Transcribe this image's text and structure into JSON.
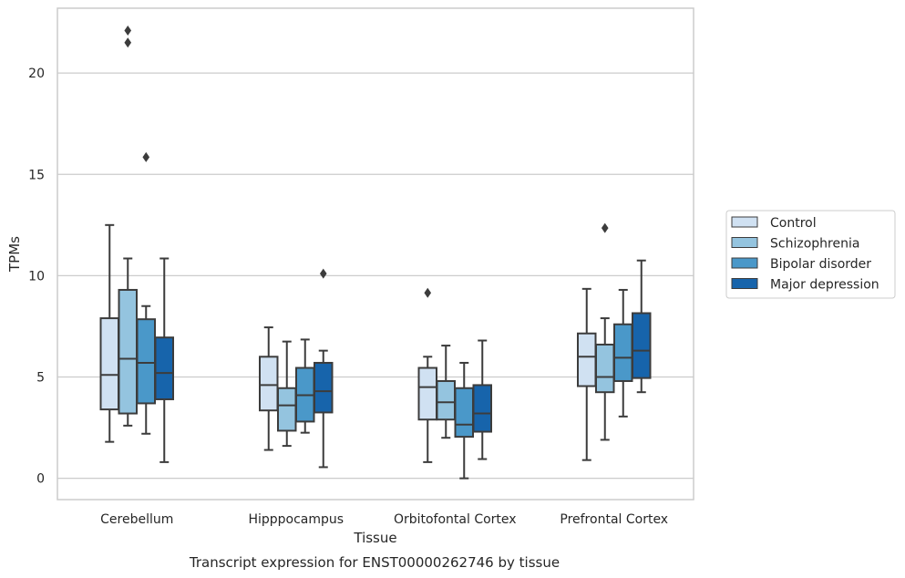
{
  "chart_data": {
    "type": "box",
    "title": "Transcript expression for ENST00000262746 by tissue",
    "xlabel": "Tissue",
    "ylabel": "TPMs",
    "ylim": [
      -1.05,
      23.2
    ],
    "yticks": [
      0,
      5,
      10,
      15,
      20
    ],
    "grid": "horizontal",
    "legend_position": "right",
    "categories": [
      "Cerebellum",
      "Hipppocampus",
      "Orbitofontal Cortex",
      "Prefrontal Cortex"
    ],
    "series": [
      {
        "name": "Control",
        "color": "#d0e1f2",
        "boxes": [
          {
            "whislo": 1.8,
            "q1": 3.4,
            "med": 5.1,
            "q3": 7.9,
            "whishi": 12.5,
            "fliers": []
          },
          {
            "whislo": 1.4,
            "q1": 3.35,
            "med": 4.6,
            "q3": 6.0,
            "whishi": 7.45,
            "fliers": []
          },
          {
            "whislo": 0.8,
            "q1": 2.9,
            "med": 4.5,
            "q3": 5.45,
            "whishi": 6.0,
            "fliers": [
              9.15
            ]
          },
          {
            "whislo": 0.9,
            "q1": 4.55,
            "med": 6.0,
            "q3": 7.15,
            "whishi": 9.35,
            "fliers": []
          }
        ]
      },
      {
        "name": "Schizophrenia",
        "color": "#94c4df",
        "boxes": [
          {
            "whislo": 2.6,
            "q1": 3.2,
            "med": 5.9,
            "q3": 9.3,
            "whishi": 10.85,
            "fliers": [
              21.5,
              22.1
            ]
          },
          {
            "whislo": 1.6,
            "q1": 2.35,
            "med": 3.6,
            "q3": 4.45,
            "whishi": 6.75,
            "fliers": []
          },
          {
            "whislo": 2.0,
            "q1": 2.9,
            "med": 3.75,
            "q3": 4.8,
            "whishi": 6.55,
            "fliers": []
          },
          {
            "whislo": 1.9,
            "q1": 4.25,
            "med": 5.0,
            "q3": 6.6,
            "whishi": 7.9,
            "fliers": [
              12.35
            ]
          }
        ]
      },
      {
        "name": "Bipolar disorder",
        "color": "#4a98c9",
        "boxes": [
          {
            "whislo": 2.2,
            "q1": 3.7,
            "med": 5.7,
            "q3": 7.85,
            "whishi": 8.5,
            "fliers": [
              15.85
            ]
          },
          {
            "whislo": 2.25,
            "q1": 2.8,
            "med": 4.1,
            "q3": 5.45,
            "whishi": 6.85,
            "fliers": []
          },
          {
            "whislo": 0.0,
            "q1": 2.05,
            "med": 2.65,
            "q3": 4.45,
            "whishi": 5.7,
            "fliers": []
          },
          {
            "whislo": 3.05,
            "q1": 4.8,
            "med": 5.95,
            "q3": 7.6,
            "whishi": 9.3,
            "fliers": []
          }
        ]
      },
      {
        "name": "Major depression",
        "color": "#1764ab",
        "boxes": [
          {
            "whislo": 0.8,
            "q1": 3.9,
            "med": 5.2,
            "q3": 6.95,
            "whishi": 10.85,
            "fliers": []
          },
          {
            "whislo": 0.55,
            "q1": 3.25,
            "med": 4.3,
            "q3": 5.7,
            "whishi": 6.3,
            "fliers": [
              10.1
            ]
          },
          {
            "whislo": 0.95,
            "q1": 2.3,
            "med": 3.2,
            "q3": 4.6,
            "whishi": 6.8,
            "fliers": []
          },
          {
            "whislo": 4.25,
            "q1": 4.95,
            "med": 6.3,
            "q3": 8.15,
            "whishi": 10.75,
            "fliers": []
          }
        ]
      }
    ]
  }
}
